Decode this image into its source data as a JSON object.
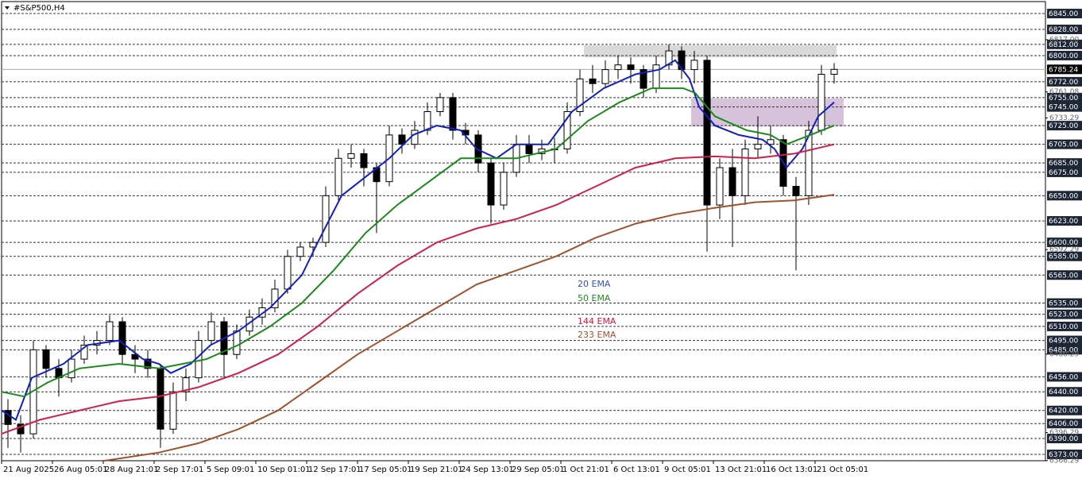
{
  "chart_data": {
    "type": "candlestick",
    "title": "#S&P500,H4",
    "xlim": [
      0,
      328.5
    ],
    "ylim": [
      6366.2,
      6857.8
    ],
    "xticks": [
      {
        "value": 0,
        "label": "21 Aug 2025"
      },
      {
        "value": 16,
        "label": "26 Aug 05:01"
      },
      {
        "value": 32,
        "label": "28 Aug 21:01"
      },
      {
        "value": 48,
        "label": "2 Sep 17:01"
      },
      {
        "value": 64,
        "label": "5 Sep 09:01"
      },
      {
        "value": 80,
        "label": "10 Sep 01:01"
      },
      {
        "value": 96,
        "label": "12 Sep 17:01"
      },
      {
        "value": 112,
        "label": "17 Sep 05:01"
      },
      {
        "value": 128,
        "label": "19 Sep 21:01"
      },
      {
        "value": 144,
        "label": "24 Sep 13:01"
      },
      {
        "value": 160,
        "label": "29 Sep 05:01"
      },
      {
        "value": 176,
        "label": "1 Oct 21:01"
      },
      {
        "value": 192,
        "label": "6 Oct 13:01"
      },
      {
        "value": 208,
        "label": "9 Oct 05:01"
      },
      {
        "value": 224,
        "label": "13 Oct 21:01"
      },
      {
        "value": 240,
        "label": "16 Oct 13:01"
      },
      {
        "value": 256,
        "label": "21 Oct 05:01"
      }
    ],
    "yticks": [
      {
        "value": 6845,
        "label": "6845.00"
      },
      {
        "value": 6828,
        "label": "6828.00"
      },
      {
        "value": 6812,
        "label": "6812.00"
      },
      {
        "value": 6800,
        "label": "6800.00"
      },
      {
        "value": 6772,
        "label": "6772.00"
      },
      {
        "value": 6755,
        "label": "6755.00"
      },
      {
        "value": 6745,
        "label": "6745.00"
      },
      {
        "value": 6725,
        "label": "6725.00"
      },
      {
        "value": 6705,
        "label": "6705.00"
      },
      {
        "value": 6685,
        "label": "6685.00"
      },
      {
        "value": 6675,
        "label": "6675.00"
      },
      {
        "value": 6650,
        "label": "6650.00"
      },
      {
        "value": 6623,
        "label": "6623.00"
      },
      {
        "value": 6600,
        "label": "6600.00"
      },
      {
        "value": 6585,
        "label": "6585.00"
      },
      {
        "value": 6565,
        "label": "6565.00"
      },
      {
        "value": 6535,
        "label": "6535.00"
      },
      {
        "value": 6523,
        "label": "6523.00"
      },
      {
        "value": 6510,
        "label": "6510.00"
      },
      {
        "value": 6495,
        "label": "6495.00"
      },
      {
        "value": 6485,
        "label": "6485.00"
      },
      {
        "value": 6456,
        "label": "6456.00"
      },
      {
        "value": 6440,
        "label": "6440.00"
      },
      {
        "value": 6420,
        "label": "6420.00"
      },
      {
        "value": 6406,
        "label": "6406.00"
      },
      {
        "value": 6390,
        "label": "6390.00"
      },
      {
        "value": 6373,
        "label": "6373.00"
      }
    ],
    "yticks_minor": [
      {
        "value": 6817,
        "label": "6817.00"
      },
      6761.08,
      6733.29,
      6592.29,
      6480.29,
      6396.29,
      6366.29
    ],
    "current_price": 6785.24,
    "grid": true,
    "candles": {
      "x": [
        2,
        6,
        10,
        14,
        18,
        22,
        26,
        30,
        34,
        38,
        42,
        46,
        50,
        54,
        58,
        62,
        66,
        70,
        74,
        78,
        82,
        86,
        90,
        94,
        98,
        102,
        106,
        110,
        114,
        118,
        122,
        126,
        130,
        134,
        138,
        142,
        146,
        150,
        154,
        158,
        162,
        166,
        170,
        174,
        178,
        182,
        186,
        190,
        194,
        198,
        202,
        206,
        210,
        214,
        218,
        222,
        226,
        230,
        234,
        238,
        242,
        246,
        250,
        254,
        258,
        262
      ],
      "open": [
        6420,
        6405,
        6395,
        6485,
        6465,
        6455,
        6475,
        6490,
        6495,
        6515,
        6480,
        6475,
        6465,
        6400,
        6440,
        6455,
        6495,
        6515,
        6480,
        6505,
        6520,
        6530,
        6550,
        6585,
        6595,
        6600,
        6650,
        6690,
        6695,
        6680,
        6665,
        6715,
        6705,
        6720,
        6740,
        6755,
        6720,
        6715,
        6685,
        6640,
        6675,
        6705,
        6695,
        6700,
        6700,
        6740,
        6775,
        6770,
        6785,
        6790,
        6785,
        6765,
        6790,
        6805,
        6785,
        6795,
        6640,
        6680,
        6650,
        6700,
        6705,
        6710,
        6660,
        6650,
        6720,
        6780
      ],
      "high": [
        6432,
        6415,
        6495,
        6490,
        6475,
        6485,
        6500,
        6505,
        6522,
        6520,
        6490,
        6485,
        6470,
        6450,
        6465,
        6505,
        6525,
        6520,
        6512,
        6528,
        6540,
        6560,
        6592,
        6600,
        6605,
        6660,
        6700,
        6705,
        6700,
        6685,
        6725,
        6722,
        6730,
        6750,
        6760,
        6760,
        6728,
        6720,
        6690,
        6685,
        6715,
        6715,
        6710,
        6712,
        6750,
        6785,
        6790,
        6795,
        6800,
        6798,
        6790,
        6800,
        6812,
        6810,
        6805,
        6800,
        6690,
        6700,
        6710,
        6735,
        6725,
        6715,
        6670,
        6730,
        6790,
        6792
      ],
      "low": [
        6380,
        6375,
        6390,
        6455,
        6435,
        6450,
        6470,
        6480,
        6490,
        6470,
        6460,
        6455,
        6380,
        6395,
        6430,
        6450,
        6490,
        6455,
        6475,
        6500,
        6512,
        6525,
        6545,
        6580,
        6585,
        6595,
        6645,
        6680,
        6660,
        6610,
        6660,
        6695,
        6700,
        6715,
        6735,
        6710,
        6705,
        6675,
        6620,
        6635,
        6670,
        6685,
        6688,
        6685,
        6695,
        6735,
        6760,
        6765,
        6775,
        6770,
        6755,
        6760,
        6785,
        6775,
        6770,
        6590,
        6625,
        6595,
        6640,
        6690,
        6695,
        6650,
        6570,
        6640,
        6715,
        6770
      ],
      "close": [
        6405,
        6395,
        6485,
        6465,
        6455,
        6475,
        6490,
        6495,
        6515,
        6480,
        6475,
        6465,
        6400,
        6440,
        6455,
        6495,
        6515,
        6480,
        6505,
        6520,
        6530,
        6550,
        6585,
        6595,
        6600,
        6650,
        6690,
        6695,
        6680,
        6665,
        6715,
        6705,
        6720,
        6740,
        6755,
        6720,
        6715,
        6685,
        6640,
        6675,
        6705,
        6695,
        6700,
        6700,
        6740,
        6775,
        6770,
        6785,
        6790,
        6785,
        6765,
        6790,
        6805,
        6785,
        6795,
        6640,
        6680,
        6650,
        6700,
        6705,
        6710,
        6660,
        6650,
        6720,
        6780,
        6785.24
      ]
    },
    "series": [
      {
        "name": "20 EMA",
        "color": "#1020c0",
        "label_color": "#3050c8",
        "x": [
          0,
          4.5,
          9.5,
          19.5,
          27,
          37,
          44.5,
          49.5,
          53.25,
          59.5,
          65.75,
          74.5,
          84.5,
          94.5,
          99.5,
          107,
          114.5,
          122,
          129.5,
          137,
          144.5,
          149.5,
          155.75,
          162,
          172,
          179.5,
          189.5,
          199.5,
          207,
          212,
          216.5,
          219.5,
          224.5,
          232,
          239.5,
          243.25,
          247,
          252,
          257,
          262
        ],
        "values": [
          6420,
          6410,
          6455,
          6470,
          6490,
          6495,
          6475,
          6470,
          6460,
          6470,
          6490,
          6505,
          6530,
          6565,
          6600,
          6650,
          6670,
          6690,
          6715,
          6725,
          6720,
          6700,
          6690,
          6705,
          6705,
          6740,
          6765,
          6780,
          6785,
          6795,
          6775,
          6745,
          6725,
          6715,
          6710,
          6700,
          6680,
          6700,
          6735,
          6750
        ]
      },
      {
        "name": "50 EMA",
        "color": "#1a8a1a",
        "label_color": "#228b22",
        "x": [
          0,
          7,
          14.5,
          24.5,
          37,
          49.5,
          57,
          64.5,
          74.5,
          84.5,
          94.5,
          104.5,
          114.5,
          124.5,
          134.5,
          144.5,
          154.5,
          162,
          174.5,
          184.5,
          194.5,
          204.5,
          214.5,
          218.25,
          224.5,
          234.5,
          242,
          247,
          254.5,
          262
        ],
        "values": [
          6440,
          6435,
          6450,
          6465,
          6470,
          6465,
          6470,
          6475,
          6490,
          6510,
          6535,
          6570,
          6610,
          6640,
          6665,
          6690,
          6690,
          6690,
          6700,
          6730,
          6750,
          6765,
          6765,
          6760,
          6735,
          6720,
          6715,
          6705,
          6715,
          6725
        ]
      },
      {
        "name": "144 EMA",
        "color": "#d0204a",
        "label_color": "#dc143c",
        "x": [
          0,
          12,
          24.5,
          37,
          49.5,
          62,
          74.5,
          87,
          99.5,
          112,
          124.5,
          137,
          149.5,
          162,
          174.5,
          187,
          199.5,
          212,
          224.5,
          237,
          249.5,
          262
        ],
        "values": [
          6395,
          6410,
          6420,
          6430,
          6435,
          6445,
          6460,
          6480,
          6510,
          6545,
          6575,
          6600,
          6615,
          6625,
          6640,
          6660,
          6680,
          6690,
          6692,
          6690,
          6695,
          6705
        ]
      },
      {
        "name": "233 EMA",
        "color": "#a0522d",
        "label_color": "#a0522d",
        "x": [
          32,
          49.5,
          62,
          74.5,
          87,
          99.5,
          112,
          124.5,
          137,
          149.5,
          162,
          174.5,
          187,
          199.5,
          212,
          224.5,
          237,
          249.5,
          262
        ],
        "values": [
          6366,
          6375,
          6385,
          6400,
          6420,
          6450,
          6480,
          6505,
          6530,
          6555,
          6570,
          6585,
          6605,
          6620,
          6630,
          6637,
          6643,
          6645,
          6651
        ]
      }
    ],
    "zones": [
      {
        "x": [
          183.25,
          262.75
        ],
        "y": [
          6798,
          6811
        ],
        "color": "#d9d9d9"
      },
      {
        "x": [
          217,
          265
        ],
        "y": [
          6724,
          6754
        ],
        "color": "#d6c2da"
      }
    ]
  }
}
